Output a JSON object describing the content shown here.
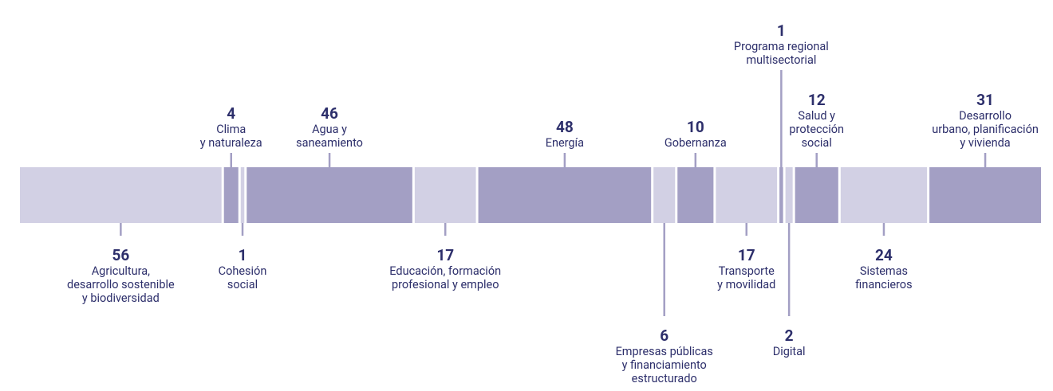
{
  "chart_data": {
    "type": "stacked",
    "colors": [
      "#d2d0e4",
      "#a39fc4"
    ],
    "categories": [
      [
        "Agricultura,",
        "desarrollo sostenible",
        "y biodiversidad"
      ],
      [
        "Clima",
        "y naturaleza"
      ],
      [
        "Cohesión",
        "social"
      ],
      [
        "Agua y",
        "saneamiento"
      ],
      [
        "Educación, formación",
        "profesional y empleo"
      ],
      [
        "Energía"
      ],
      [
        "Empresas públicas",
        "y financiamiento",
        "estructurado"
      ],
      [
        "Gobernanza"
      ],
      [
        "Transporte",
        "y movilidad"
      ],
      [
        "Programa regional",
        "multisectorial"
      ],
      [
        "Digital"
      ],
      [
        "Salud y",
        "protección",
        "social"
      ],
      [
        "Sistemas",
        "financieros"
      ],
      [
        "Desarrollo",
        "urbano, planificación",
        "y vivienda"
      ]
    ],
    "values": [
      56,
      4,
      1,
      46,
      17,
      48,
      6,
      10,
      17,
      1,
      2,
      12,
      24,
      31
    ]
  }
}
